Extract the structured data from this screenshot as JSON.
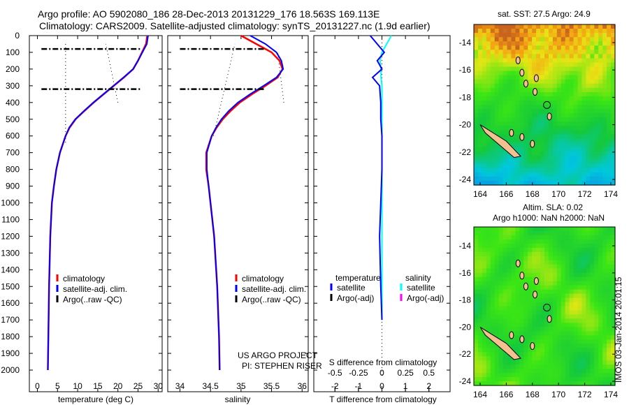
{
  "title": {
    "line1": "Argo profile: AO 5902080_186 28-Dec-2013 20131229_176 18.563S 169.113E",
    "line2": "Climatology: CARS2009. Satellite-adjusted climatology: synTS_20131227.nc (1.9d earlier)"
  },
  "credit": "IMOS 03-Jan-2014 20:01:15",
  "colors": {
    "climatology": "#ff0000",
    "satellite": "#0000ff",
    "argo": "#000000",
    "sal_satellite": "#00ffff",
    "sal_argo": "#ff00ff"
  },
  "chart_data": [
    {
      "type": "line",
      "name": "temperature",
      "xlabel": "temperature (deg C)",
      "xlim": [
        -2,
        31
      ],
      "ylim": [
        2125,
        0
      ],
      "xticks": [
        "0",
        "5",
        "10",
        "15",
        "20",
        "25",
        "30"
      ],
      "xtickvals": [
        0,
        5,
        10,
        15,
        20,
        25,
        30
      ],
      "yticks": [
        "0",
        "100",
        "200",
        "300",
        "400",
        "500",
        "600",
        "700",
        "800",
        "900",
        "1000",
        "1100",
        "1200",
        "1300",
        "1400",
        "1500",
        "1600",
        "1700",
        "1800",
        "1900",
        "2000"
      ],
      "legend": [
        "climatology",
        "satellite-adj. clim.",
        "Argo(..raw -QC)"
      ],
      "depth": [
        0,
        50,
        100,
        150,
        200,
        250,
        300,
        350,
        400,
        450,
        500,
        550,
        600,
        700,
        800,
        900,
        1000,
        1200,
        1500,
        2000
      ],
      "series": [
        {
          "name": "climatology",
          "values": [
            27.3,
            27.0,
            26.0,
            25.0,
            23.8,
            21.5,
            19.0,
            16.5,
            14.0,
            11.7,
            9.5,
            8.0,
            7.0,
            5.6,
            4.7,
            4.1,
            3.6,
            3.2,
            2.9,
            2.6
          ]
        },
        {
          "name": "satellite-adj. clim.",
          "values": [
            27.5,
            27.2,
            26.1,
            25.0,
            23.8,
            21.4,
            18.9,
            16.4,
            13.9,
            11.6,
            9.4,
            7.9,
            7.0,
            5.6,
            4.7,
            4.1,
            3.6,
            3.2,
            2.9,
            2.6
          ]
        }
      ],
      "argo": {
        "depths": [
          80,
          320
        ],
        "from": 1,
        "to": 26
      }
    },
    {
      "type": "line",
      "name": "salinity",
      "xlabel": "salinity",
      "xlim": [
        33.8,
        36.1
      ],
      "xticks": [
        "34",
        "34.5",
        "35",
        "35.5",
        "36"
      ],
      "xtickvals": [
        34,
        34.5,
        35,
        35.5,
        36
      ],
      "legend": [
        "climatology",
        "satellite-adj. clim.",
        "Argo(..raw -QC)"
      ],
      "annotation": [
        "US ARGO PROJECT",
        "PI: STEPHEN RISER"
      ],
      "depth": [
        0,
        50,
        100,
        150,
        200,
        250,
        300,
        350,
        400,
        450,
        500,
        550,
        600,
        700,
        800,
        900,
        1000,
        1200,
        1500,
        1800,
        2000
      ],
      "series": [
        {
          "name": "climatology",
          "values": [
            35.0,
            35.25,
            35.5,
            35.63,
            35.68,
            35.6,
            35.4,
            35.18,
            34.98,
            34.83,
            34.7,
            34.6,
            34.52,
            34.43,
            34.43,
            34.47,
            34.5,
            34.56,
            34.61,
            34.64,
            34.65
          ]
        },
        {
          "name": "satellite-adj. clim.",
          "values": [
            35.15,
            35.4,
            35.58,
            35.66,
            35.69,
            35.58,
            35.37,
            35.15,
            34.95,
            34.8,
            34.68,
            34.59,
            34.52,
            34.44,
            34.44,
            34.47,
            34.5,
            34.56,
            34.61,
            34.64,
            34.65
          ]
        }
      ],
      "argo": {
        "depths": [
          80,
          320
        ],
        "from": 34.0,
        "to": 35.4
      }
    },
    {
      "type": "line",
      "name": "difference",
      "xlabel": "T difference from climatology",
      "xlabel2": "S difference from climatology",
      "xlim": [
        -2.9,
        2.9
      ],
      "xticks": [
        "-2",
        "-1",
        "0",
        "1",
        "2"
      ],
      "xtickvals": [
        -2,
        -1,
        0,
        1,
        2
      ],
      "sticks": [
        "-0.5",
        "-0.25",
        "0",
        "0.25",
        "0.5"
      ],
      "stickvals": [
        -0.5,
        -0.25,
        0,
        0.25,
        0.5
      ],
      "legend": {
        "temperature": "temperature",
        "salinity": "salinity",
        "t_sat": "satellite",
        "t_argo": "Argo(-adj)",
        "s_sat": "satellite",
        "s_argo": "Argo(-adj)"
      },
      "depth": [
        0,
        50,
        100,
        150,
        200,
        250,
        300,
        400,
        500,
        600,
        800,
        1000,
        1200,
        1500,
        1700
      ],
      "t_sat": [
        -0.5,
        -0.2,
        0.1,
        -0.2,
        0.0,
        -0.4,
        -0.1,
        -0.05,
        -0.05,
        0.0,
        0.0,
        -0.05,
        -0.1,
        -0.05,
        0.0
      ],
      "s_sat": [
        0.1,
        0.05,
        0.0,
        -0.02,
        -0.01,
        -0.01,
        0.0,
        0.0,
        0.0,
        0.0,
        0.0,
        0.0,
        0.0,
        0.0,
        0.0
      ]
    },
    {
      "type": "heatmap",
      "name": "sst-map",
      "title": "sat. SST: 27.5 Argo: 24.9",
      "xticks": [
        "164",
        "166",
        "168",
        "170",
        "172",
        "174"
      ],
      "yticks": [
        "-14",
        "-16",
        "-18",
        "-20",
        "-22",
        "-24"
      ]
    },
    {
      "type": "heatmap",
      "name": "sla-map",
      "title1": "Altim. SLA: 0.02",
      "title2": "Argo h1000: NaN h2000: NaN",
      "xticks": [
        "164",
        "166",
        "168",
        "170",
        "172",
        "174"
      ],
      "yticks": [
        "-14",
        "-16",
        "-18",
        "-20",
        "-22",
        "-24"
      ]
    }
  ]
}
